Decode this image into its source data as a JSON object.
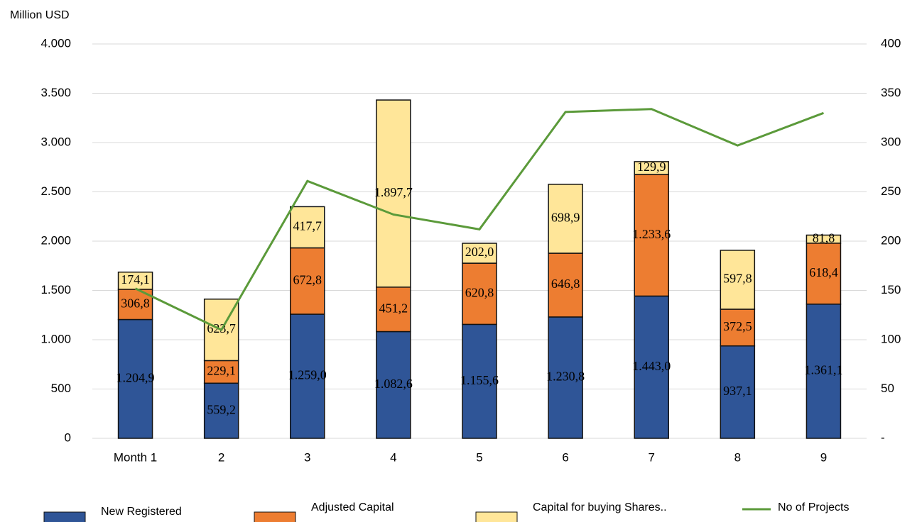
{
  "chart_data": {
    "type": "bar",
    "stacked": true,
    "y_label": "Million USD",
    "categories": [
      "Month 1",
      "2",
      "3",
      "4",
      "5",
      "6",
      "7",
      "8",
      "9"
    ],
    "series": [
      {
        "name": "New Registered",
        "color": "#2f5597",
        "values": [
          1204.9,
          559.2,
          1259.0,
          1082.6,
          1155.6,
          1230.8,
          1443.0,
          937.1,
          1361.1
        ],
        "value_labels": [
          "1.204,9",
          "559,2",
          "1.259,0",
          "1.082,6",
          "1.155,6",
          "1.230,8",
          "1.443,0",
          "937,1",
          "1.361,1"
        ]
      },
      {
        "name": "Adjusted Capital",
        "color": "#ed7d31",
        "values": [
          306.8,
          229.1,
          672.8,
          451.2,
          620.8,
          646.8,
          1233.6,
          372.5,
          618.4
        ],
        "value_labels": [
          "306,8",
          "229,1",
          "672,8",
          "451,2",
          "620,8",
          "646,8",
          "1.233,6",
          "372,5",
          "618,4"
        ]
      },
      {
        "name": "Capital for buying Shares..",
        "color": "#ffe699",
        "values": [
          174.1,
          623.7,
          417.7,
          1897.7,
          202.0,
          698.9,
          129.9,
          597.8,
          81.8
        ],
        "value_labels": [
          "174,1",
          "623,7",
          "417,7",
          "1.897,7",
          "202,0",
          "698,9",
          "129,9",
          "597,8",
          "81,8"
        ]
      },
      {
        "name": "No of Projects",
        "color": "#5b9a3a",
        "type": "line",
        "axis": "y2",
        "values": [
          152,
          110,
          261,
          227,
          212,
          331,
          334,
          297,
          330
        ]
      }
    ],
    "ylim": [
      0,
      4000
    ],
    "yticks": [
      0,
      500,
      {
        "value": 1000,
        "label": "1.000"
      },
      {
        "value": 1500,
        "label": "1.500"
      },
      {
        "value": 2000,
        "label": "2.000"
      },
      {
        "value": 2500,
        "label": "2.500"
      },
      {
        "value": 3000,
        "label": "3.000"
      },
      {
        "value": 3500,
        "label": "3.500"
      },
      {
        "value": 4000,
        "label": "4.000"
      }
    ],
    "y2lim": [
      0,
      400
    ],
    "y2ticks": [
      {
        "value": 0,
        "label": "-"
      },
      50,
      100,
      150,
      200,
      250,
      300,
      350,
      400
    ],
    "grid": true,
    "legend": "bottom"
  }
}
